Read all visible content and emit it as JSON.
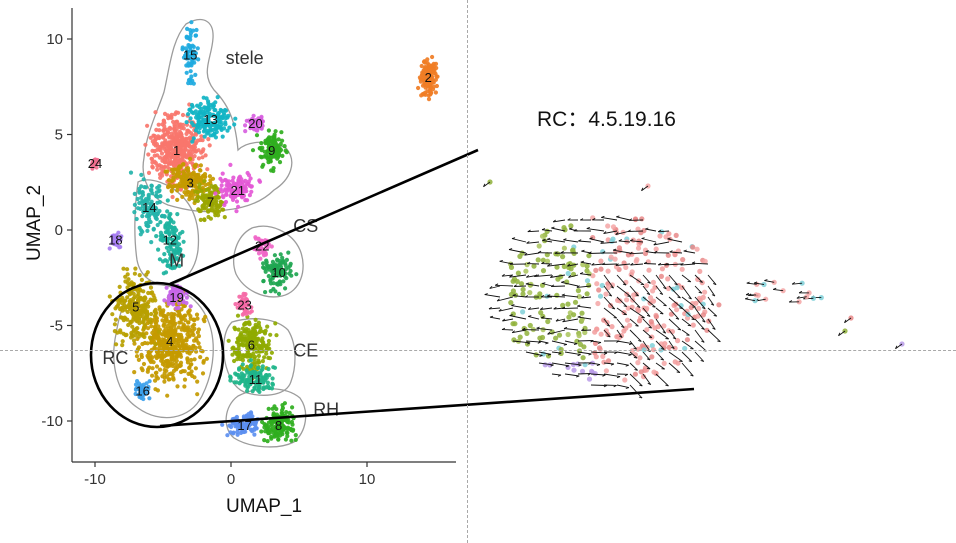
{
  "colors": {
    "c1": "#F8766D",
    "c2": "#F07D25",
    "c3": "#C49A00",
    "c4": "#C49A00",
    "c5": "#B79F00",
    "c6": "#8FAA00",
    "c7": "#9AA600",
    "c8": "#2FAE1E",
    "c9": "#2FAE1E",
    "c10": "#1FA651",
    "c11": "#1FB58A",
    "c12": "#1DB3A0",
    "c13": "#11B4C4",
    "c14": "#24B3AA",
    "c15": "#1EAAE0",
    "c16": "#3DA1EC",
    "c17": "#5C8FF0",
    "c18": "#A67DF2",
    "c19": "#C566E8",
    "c20": "#D75FE0",
    "c21": "#E458D6",
    "c22": "#F066C8",
    "c23": "#F569A6",
    "c24": "#F06E8E",
    "outline": "#9c9c9c",
    "axis": "#333333",
    "arrow": "#111111"
  },
  "chart_data": [
    {
      "type": "scatter",
      "xlabel": "UMAP_1",
      "ylabel": "UMAP_2",
      "xlim": [
        -11.5,
        17
      ],
      "ylim": [
        -12,
        11.5
      ],
      "xticks": [
        -10,
        0,
        10
      ],
      "yticks": [
        10,
        5,
        0,
        -5,
        -10
      ],
      "grid": false,
      "clusters": [
        {
          "label": "1",
          "x": -4,
          "y": 4.2,
          "color": "c1"
        },
        {
          "label": "2",
          "x": 14.5,
          "y": 8,
          "color": "c2"
        },
        {
          "label": "3",
          "x": -3,
          "y": 2.5,
          "color": "c3"
        },
        {
          "label": "4",
          "x": -4.5,
          "y": -5.8,
          "color": "c4"
        },
        {
          "label": "5",
          "x": -7,
          "y": -4,
          "color": "c5"
        },
        {
          "label": "6",
          "x": 1.5,
          "y": -6,
          "color": "c6"
        },
        {
          "label": "7",
          "x": -1.5,
          "y": 1.5,
          "color": "c7"
        },
        {
          "label": "8",
          "x": 3.5,
          "y": -10.2,
          "color": "c8"
        },
        {
          "label": "9",
          "x": 3,
          "y": 4.2,
          "color": "c9"
        },
        {
          "label": "10",
          "x": 3.5,
          "y": -2.2,
          "color": "c10"
        },
        {
          "label": "11",
          "x": 1.8,
          "y": -7.8,
          "color": "c11"
        },
        {
          "label": "12",
          "x": -4.5,
          "y": -0.5,
          "color": "c12"
        },
        {
          "label": "13",
          "x": -1.5,
          "y": 5.8,
          "color": "c13"
        },
        {
          "label": "14",
          "x": -6,
          "y": 1.2,
          "color": "c14"
        },
        {
          "label": "15",
          "x": -3,
          "y": 9.2,
          "color": "c15"
        },
        {
          "label": "16",
          "x": -6.5,
          "y": -8.4,
          "color": "c16"
        },
        {
          "label": "17",
          "x": 1,
          "y": -10.2,
          "color": "c17"
        },
        {
          "label": "18",
          "x": -8.5,
          "y": -0.5,
          "color": "c18"
        },
        {
          "label": "19",
          "x": -4,
          "y": -3.5,
          "color": "c19"
        },
        {
          "label": "20",
          "x": 1.8,
          "y": 5.6,
          "color": "c20"
        },
        {
          "label": "21",
          "x": 0.5,
          "y": 2.1,
          "color": "c21"
        },
        {
          "label": "22",
          "x": 2.3,
          "y": -0.8,
          "color": "c22"
        },
        {
          "label": "23",
          "x": 1,
          "y": -3.9,
          "color": "c23"
        },
        {
          "label": "24",
          "x": -10,
          "y": 3.5,
          "color": "c24"
        }
      ],
      "annotations": [
        {
          "text": "stele",
          "x": 1,
          "y": 9
        },
        {
          "text": "M",
          "x": -4,
          "y": -1.6
        },
        {
          "text": "CS",
          "x": 5.5,
          "y": 0.2
        },
        {
          "text": "CE",
          "x": 5.5,
          "y": -6.3
        },
        {
          "text": "RC",
          "x": -8.5,
          "y": -6.7
        },
        {
          "text": "RH",
          "x": 7,
          "y": -9.4
        }
      ]
    },
    {
      "type": "scatter",
      "title": "RC：4.5.19.16",
      "style": "velocity-arrows"
    }
  ]
}
